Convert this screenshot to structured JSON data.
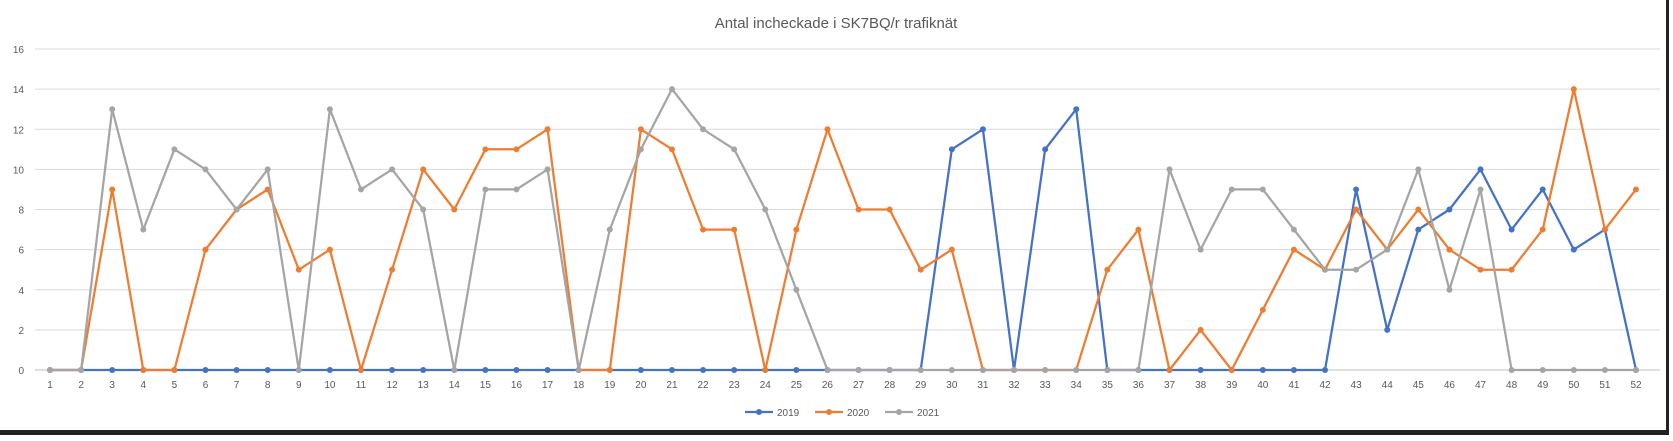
{
  "chart_data": {
    "type": "line",
    "title": "Antal incheckade i SK7BQ/r trafiknät",
    "xlabel": "",
    "ylabel": "",
    "ylim": [
      0,
      16
    ],
    "yticks": [
      0,
      2,
      4,
      6,
      8,
      10,
      12,
      14,
      16
    ],
    "grid": true,
    "legend_position": "bottom",
    "x": [
      "1",
      "2",
      "3",
      "4",
      "5",
      "6",
      "7",
      "8",
      "9",
      "10",
      "11",
      "12",
      "13",
      "14",
      "15",
      "16",
      "17",
      "18",
      "19",
      "20",
      "21",
      "22",
      "23",
      "24",
      "25",
      "26",
      "27",
      "28",
      "29",
      "30",
      "31",
      "32",
      "33",
      "34",
      "35",
      "36",
      "37",
      "38",
      "39",
      "40",
      "41",
      "42",
      "43",
      "44",
      "45",
      "46",
      "47",
      "48",
      "49",
      "50",
      "51",
      "52"
    ],
    "series": [
      {
        "name": "2019",
        "color": "#4472C4",
        "values": [
          0,
          0,
          0,
          0,
          0,
          0,
          0,
          0,
          0,
          0,
          0,
          0,
          0,
          0,
          0,
          0,
          0,
          0,
          0,
          0,
          0,
          0,
          0,
          0,
          0,
          0,
          0,
          0,
          0,
          11,
          12,
          0,
          11,
          13,
          0,
          0,
          0,
          0,
          0,
          0,
          0,
          0,
          9,
          2,
          7,
          8,
          10,
          7,
          9,
          6,
          7,
          0
        ]
      },
      {
        "name": "2020",
        "color": "#ED7D31",
        "values": [
          0,
          0,
          9,
          0,
          0,
          6,
          8,
          9,
          5,
          6,
          0,
          5,
          10,
          8,
          11,
          11,
          12,
          0,
          0,
          12,
          11,
          7,
          7,
          0,
          7,
          12,
          8,
          8,
          5,
          6,
          0,
          0,
          0,
          0,
          5,
          7,
          0,
          2,
          0,
          3,
          6,
          5,
          8,
          6,
          8,
          6,
          5,
          5,
          7,
          14,
          7,
          9
        ]
      },
      {
        "name": "2021",
        "color": "#A5A5A5",
        "values": [
          0,
          0,
          13,
          7,
          11,
          10,
          8,
          10,
          0,
          13,
          9,
          10,
          8,
          0,
          9,
          9,
          10,
          0,
          7,
          11,
          14,
          12,
          11,
          8,
          4,
          0,
          0,
          0,
          0,
          0,
          0,
          0,
          0,
          0,
          0,
          0,
          10,
          6,
          9,
          9,
          7,
          5,
          5,
          6,
          10,
          4,
          9,
          0,
          0,
          0,
          0,
          0
        ]
      }
    ]
  }
}
